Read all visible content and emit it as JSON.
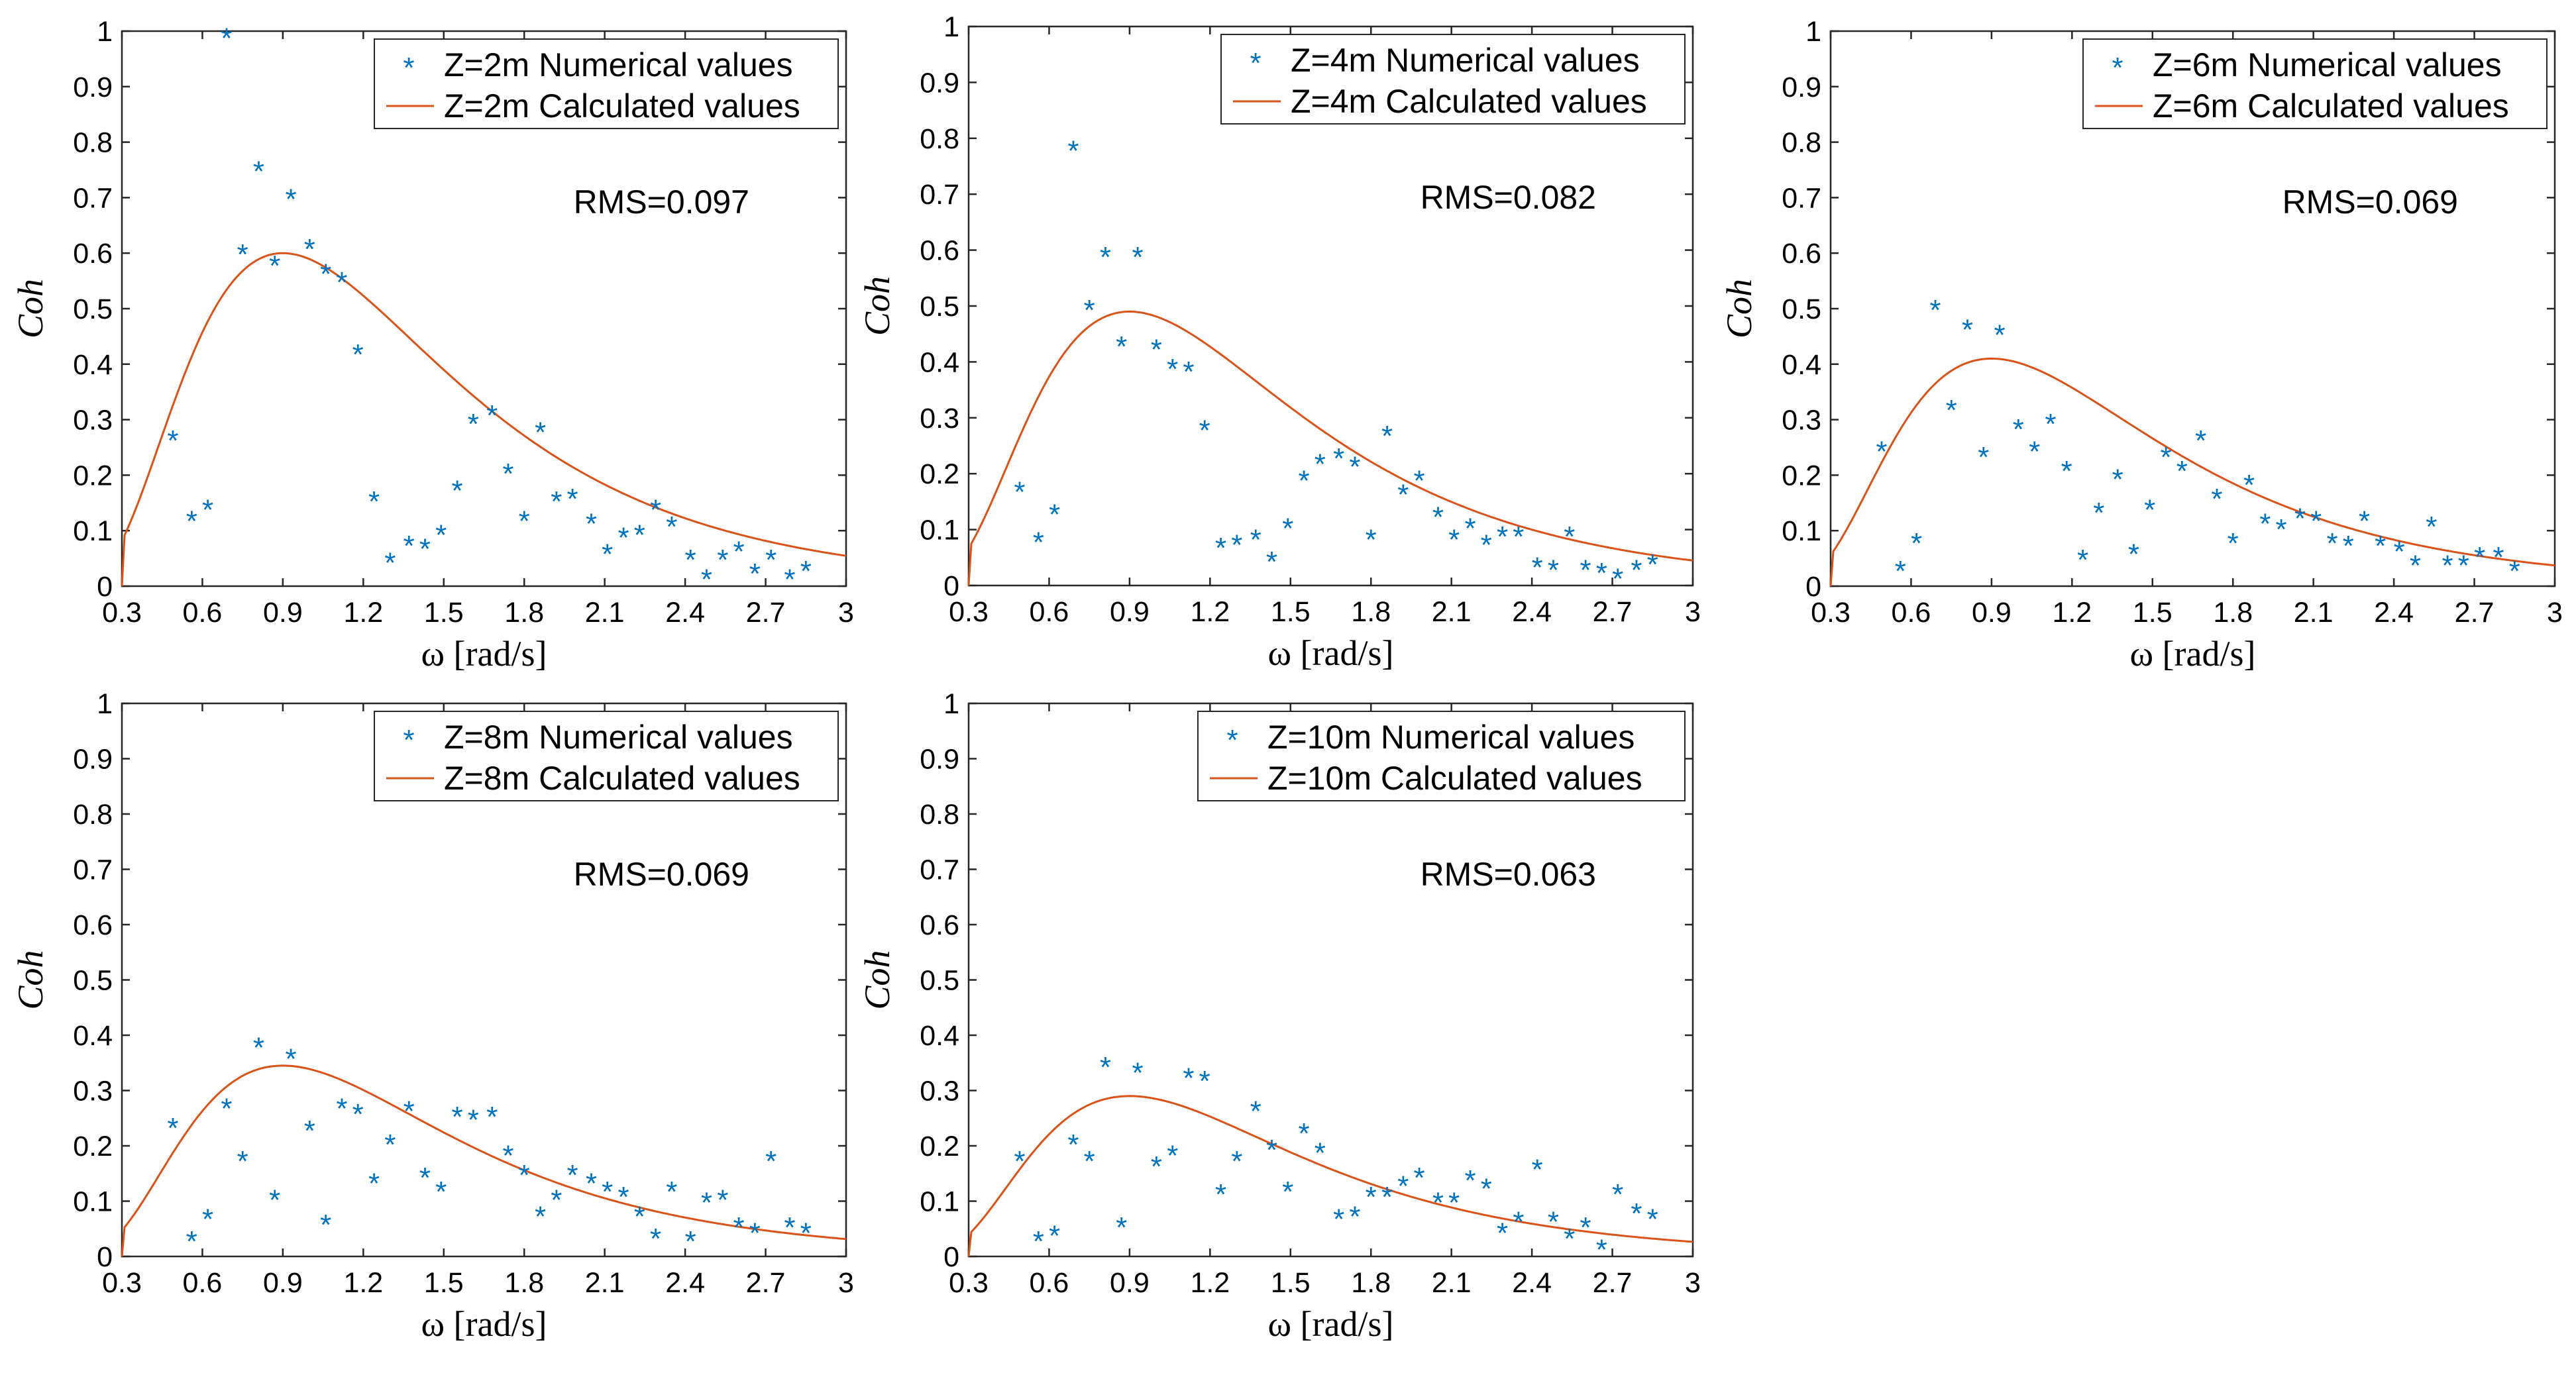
{
  "chart_data": [
    {
      "type": "scatter",
      "ylabel": "Coh",
      "xlabel": "ω [rad/s]",
      "xlim": [
        0.3,
        3
      ],
      "ylim": [
        0,
        1
      ],
      "xticks": [
        "0.3",
        "0.6",
        "0.9",
        "1.2",
        "1.5",
        "1.8",
        "2.1",
        "2.4",
        "2.7",
        "3"
      ],
      "yticks": [
        "0",
        "0.1",
        "0.2",
        "0.3",
        "0.4",
        "0.5",
        "0.6",
        "0.7",
        "0.8",
        "0.9",
        "1"
      ],
      "rms": "RMS=0.097",
      "legend": [
        "Z=2m Numerical values",
        "Z=2m Calculated values"
      ],
      "fit_peak": 0.6,
      "numerical": {
        "x": [
          0.49,
          0.56,
          0.62,
          0.69,
          0.75,
          0.81,
          0.87,
          0.93,
          1.0,
          1.06,
          1.12,
          1.18,
          1.24,
          1.3,
          1.37,
          1.43,
          1.49,
          1.55,
          1.61,
          1.68,
          1.74,
          1.8,
          1.86,
          1.92,
          1.98,
          2.05,
          2.11,
          2.17,
          2.23,
          2.29,
          2.35,
          2.42,
          2.48,
          2.54,
          2.6,
          2.66,
          2.72,
          2.79,
          2.85
        ],
        "y": [
          0.265,
          0.12,
          0.14,
          0.99,
          0.6,
          0.75,
          0.58,
          0.7,
          0.61,
          0.565,
          0.55,
          0.42,
          0.155,
          0.045,
          0.075,
          0.07,
          0.095,
          0.175,
          0.295,
          0.31,
          0.205,
          0.12,
          0.28,
          0.155,
          0.16,
          0.115,
          0.06,
          0.09,
          0.095,
          0.14,
          0.11,
          0.05,
          0.015,
          0.05,
          0.065,
          0.025,
          0.05,
          0.015,
          0.03
        ]
      }
    },
    {
      "type": "scatter",
      "ylabel": "Coh",
      "xlabel": "ω [rad/s]",
      "xlim": [
        0.3,
        3
      ],
      "ylim": [
        0,
        1
      ],
      "xticks": [
        "0.3",
        "0.6",
        "0.9",
        "1.2",
        "1.5",
        "1.8",
        "2.1",
        "2.4",
        "2.7",
        "3"
      ],
      "yticks": [
        "0",
        "0.1",
        "0.2",
        "0.3",
        "0.4",
        "0.5",
        "0.6",
        "0.7",
        "0.8",
        "0.9",
        "1"
      ],
      "rms": "RMS=0.082",
      "legend": [
        "Z=4m Numerical values",
        "Z=4m Calculated values"
      ],
      "fit_peak": 0.49,
      "numerical": {
        "x": [
          0.49,
          0.56,
          0.62,
          0.69,
          0.75,
          0.81,
          0.87,
          0.93,
          1.0,
          1.06,
          1.12,
          1.18,
          1.24,
          1.3,
          1.37,
          1.43,
          1.49,
          1.55,
          1.61,
          1.68,
          1.74,
          1.8,
          1.86,
          1.92,
          1.98,
          2.05,
          2.11,
          2.17,
          2.23,
          2.29,
          2.35,
          2.42,
          2.48,
          2.54,
          2.6,
          2.66,
          2.72,
          2.79,
          2.85
        ],
        "y": [
          0.17,
          0.08,
          0.13,
          0.78,
          0.495,
          0.59,
          0.43,
          0.59,
          0.425,
          0.39,
          0.385,
          0.28,
          0.07,
          0.075,
          0.085,
          0.045,
          0.105,
          0.19,
          0.22,
          0.23,
          0.215,
          0.085,
          0.27,
          0.165,
          0.19,
          0.125,
          0.085,
          0.105,
          0.075,
          0.09,
          0.09,
          0.035,
          0.03,
          0.09,
          0.03,
          0.025,
          0.015,
          0.03,
          0.04
        ]
      }
    },
    {
      "type": "scatter",
      "ylabel": "Coh",
      "xlabel": "ω [rad/s]",
      "xlim": [
        0.3,
        3
      ],
      "ylim": [
        0,
        1
      ],
      "xticks": [
        "0.3",
        "0.6",
        "0.9",
        "1.2",
        "1.5",
        "1.8",
        "2.1",
        "2.4",
        "2.7",
        "3"
      ],
      "yticks": [
        "0",
        "0.1",
        "0.2",
        "0.3",
        "0.4",
        "0.5",
        "0.6",
        "0.7",
        "0.8",
        "0.9",
        "1"
      ],
      "rms": "RMS=0.069",
      "legend": [
        "Z=6m Numerical values",
        "Z=6m Calculated values"
      ],
      "fit_peak": 0.41,
      "numerical": {
        "x": [
          0.49,
          0.56,
          0.62,
          0.69,
          0.75,
          0.81,
          0.87,
          0.93,
          1.0,
          1.06,
          1.12,
          1.18,
          1.24,
          1.3,
          1.37,
          1.43,
          1.49,
          1.55,
          1.61,
          1.68,
          1.74,
          1.8,
          1.86,
          1.92,
          1.98,
          2.05,
          2.11,
          2.17,
          2.23,
          2.29,
          2.35,
          2.42,
          2.48,
          2.54,
          2.6,
          2.66,
          2.72,
          2.79,
          2.85
        ],
        "y": [
          0.245,
          0.03,
          0.08,
          0.5,
          0.32,
          0.465,
          0.235,
          0.455,
          0.285,
          0.245,
          0.295,
          0.21,
          0.05,
          0.135,
          0.195,
          0.06,
          0.14,
          0.235,
          0.21,
          0.265,
          0.16,
          0.08,
          0.185,
          0.115,
          0.105,
          0.125,
          0.12,
          0.08,
          0.075,
          0.12,
          0.075,
          0.065,
          0.04,
          0.11,
          0.04,
          0.04,
          0.055,
          0.055,
          0.03
        ]
      }
    },
    {
      "type": "scatter",
      "ylabel": "Coh",
      "xlabel": "ω [rad/s]",
      "xlim": [
        0.3,
        3
      ],
      "ylim": [
        0,
        1
      ],
      "xticks": [
        "0.3",
        "0.6",
        "0.9",
        "1.2",
        "1.5",
        "1.8",
        "2.1",
        "2.4",
        "2.7",
        "3"
      ],
      "yticks": [
        "0",
        "0.1",
        "0.2",
        "0.3",
        "0.4",
        "0.5",
        "0.6",
        "0.7",
        "0.8",
        "0.9",
        "1"
      ],
      "rms": "RMS=0.069",
      "legend": [
        "Z=8m Numerical values",
        "Z=8m Calculated values"
      ],
      "fit_peak": 0.345,
      "numerical": {
        "x": [
          0.49,
          0.56,
          0.62,
          0.69,
          0.75,
          0.81,
          0.87,
          0.93,
          1.0,
          1.06,
          1.12,
          1.18,
          1.24,
          1.3,
          1.37,
          1.43,
          1.49,
          1.55,
          1.61,
          1.68,
          1.74,
          1.8,
          1.86,
          1.92,
          1.98,
          2.05,
          2.11,
          2.17,
          2.23,
          2.29,
          2.35,
          2.42,
          2.48,
          2.54,
          2.6,
          2.66,
          2.72,
          2.79,
          2.85
        ],
        "y": [
          0.235,
          0.03,
          0.07,
          0.27,
          0.175,
          0.38,
          0.105,
          0.36,
          0.23,
          0.06,
          0.27,
          0.26,
          0.135,
          0.205,
          0.265,
          0.145,
          0.12,
          0.255,
          0.25,
          0.255,
          0.185,
          0.15,
          0.075,
          0.105,
          0.15,
          0.135,
          0.12,
          0.11,
          0.075,
          0.035,
          0.12,
          0.03,
          0.1,
          0.105,
          0.055,
          0.045,
          0.175,
          0.055,
          0.045
        ]
      }
    },
    {
      "type": "scatter",
      "ylabel": "Coh",
      "xlabel": "ω [rad/s]",
      "xlim": [
        0.3,
        3
      ],
      "ylim": [
        0,
        1
      ],
      "xticks": [
        "0.3",
        "0.6",
        "0.9",
        "1.2",
        "1.5",
        "1.8",
        "2.1",
        "2.4",
        "2.7",
        "3"
      ],
      "yticks": [
        "0",
        "0.1",
        "0.2",
        "0.3",
        "0.4",
        "0.5",
        "0.6",
        "0.7",
        "0.8",
        "0.9",
        "1"
      ],
      "rms": "RMS=0.063",
      "legend": [
        "Z=10m Numerical values",
        "Z=10m Calculated values"
      ],
      "fit_peak": 0.29,
      "numerical": {
        "x": [
          0.49,
          0.56,
          0.62,
          0.69,
          0.75,
          0.81,
          0.87,
          0.93,
          1.0,
          1.06,
          1.12,
          1.18,
          1.24,
          1.3,
          1.37,
          1.43,
          1.49,
          1.55,
          1.61,
          1.68,
          1.74,
          1.8,
          1.86,
          1.92,
          1.98,
          2.05,
          2.11,
          2.17,
          2.23,
          2.29,
          2.35,
          2.42,
          2.48,
          2.54,
          2.6,
          2.66,
          2.72,
          2.79,
          2.85
        ],
        "y": [
          0.175,
          0.03,
          0.04,
          0.205,
          0.175,
          0.345,
          0.055,
          0.335,
          0.165,
          0.185,
          0.325,
          0.32,
          0.115,
          0.175,
          0.265,
          0.195,
          0.12,
          0.225,
          0.19,
          0.07,
          0.075,
          0.11,
          0.11,
          0.13,
          0.145,
          0.1,
          0.1,
          0.14,
          0.125,
          0.045,
          0.065,
          0.16,
          0.065,
          0.035,
          0.055,
          0.015,
          0.115,
          0.08,
          0.07
        ]
      }
    }
  ]
}
